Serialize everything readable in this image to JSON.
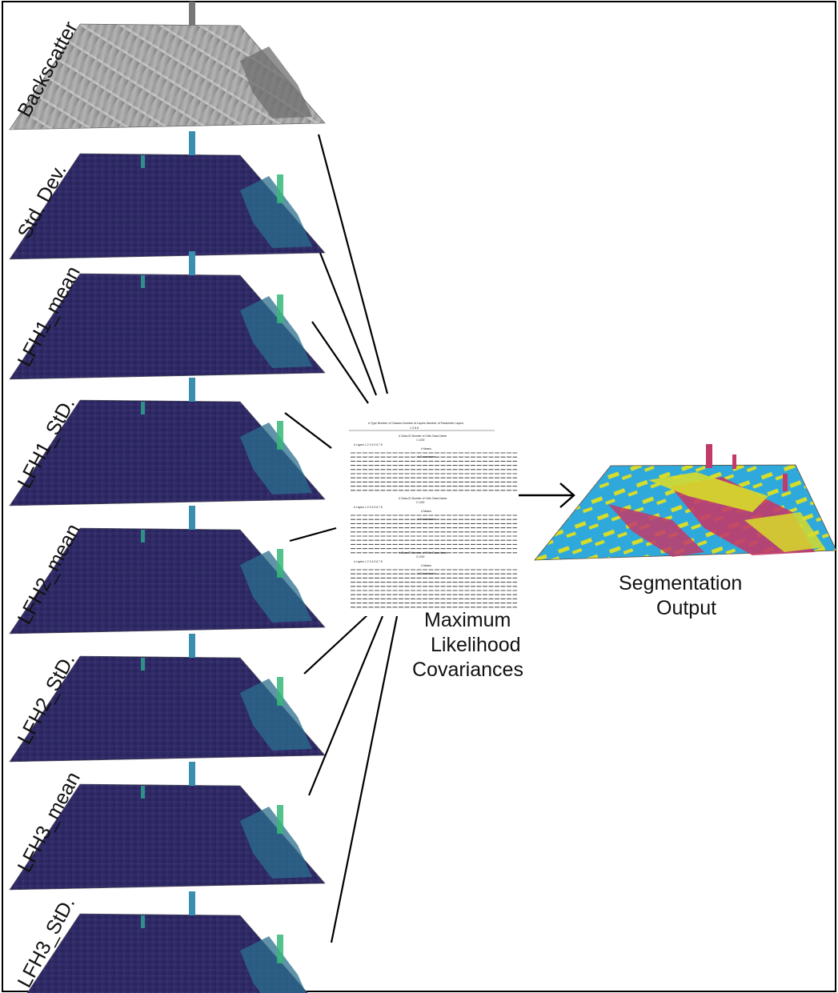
{
  "layers": [
    {
      "label": "Backscatter",
      "colormap": "grayscale"
    },
    {
      "label": "Std. Dev.",
      "colormap": "viridis"
    },
    {
      "label": "LFH1_mean",
      "colormap": "viridis"
    },
    {
      "label": "LFH1_StD.",
      "colormap": "viridis"
    },
    {
      "label": "LFH2_mean",
      "colormap": "viridis"
    },
    {
      "label": "LFH2_StD.",
      "colormap": "viridis"
    },
    {
      "label": "LFH3_mean",
      "colormap": "viridis"
    },
    {
      "label": "LFH3_StD.",
      "colormap": "viridis"
    }
  ],
  "center": {
    "label_lines": [
      "Maximum",
      "Likelihood",
      "Covariances"
    ],
    "table_header": "# Type   Number of Classes   Number of Layers   Number of Parameter Layers",
    "table_header_values": "1        3        8        8",
    "blocks": [
      {
        "title": "# Class ID   Number of Cells   Class Name",
        "values": "1        1200"
      },
      {
        "title": "# Class ID   Number of Cells   Class Name",
        "values": "2        1200"
      },
      {
        "title": "# Class ID   Number of Cells   Class Name",
        "values": "3        1200"
      }
    ],
    "section_labels": [
      "# Means",
      "# Covariances"
    ],
    "layer_header": "# Layers   1   2   3   4   5   6   7   8"
  },
  "output": {
    "label_lines": [
      "Segmentation",
      "Output"
    ],
    "colors": {
      "class_1": "#2fa9dc",
      "class_2": "#d6dc2a",
      "class_3": "#c23a6a"
    }
  },
  "colors": {
    "gray_base": "#9a9a9a",
    "viridis_base": "#2f2c6a",
    "viridis_bright": "#35b779"
  }
}
